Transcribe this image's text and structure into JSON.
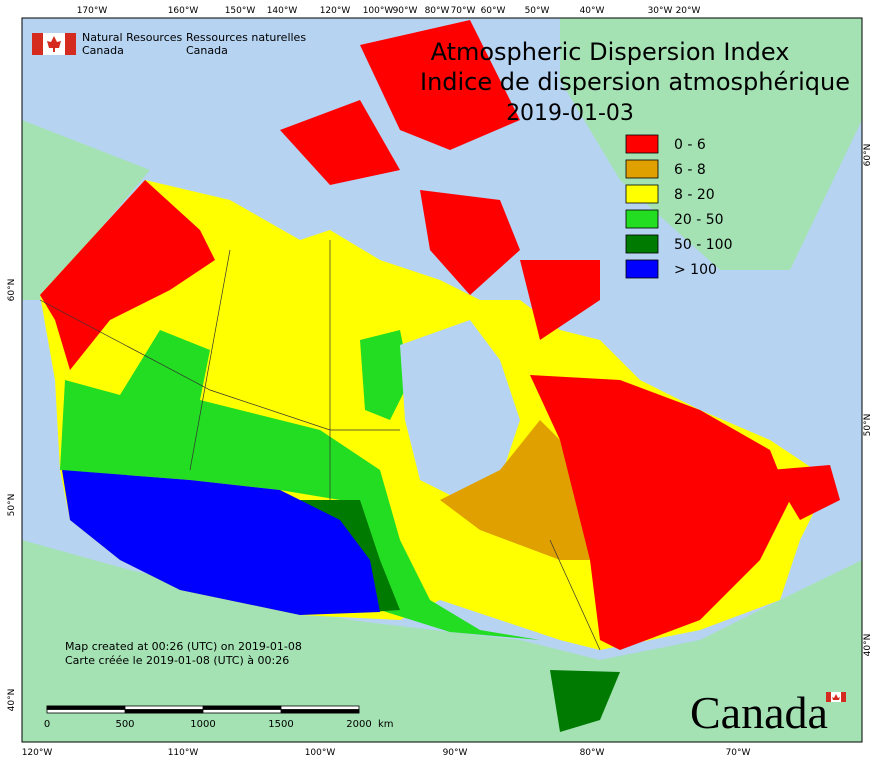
{
  "header": {
    "agency_en": "Natural Resources",
    "agency_en_country": "Canada",
    "agency_fr": "Ressources naturelles",
    "agency_fr_country": "Canada"
  },
  "title": {
    "line1": "Atmospheric Dispersion Index",
    "line2": "Indice de dispersion atmosphérique",
    "date": "2019-01-03"
  },
  "legend": [
    {
      "label": "0 - 6",
      "color": "#ff0000"
    },
    {
      "label": "6 - 8",
      "color": "#e0a000"
    },
    {
      "label": "8 - 20",
      "color": "#ffff00"
    },
    {
      "label": "20 - 50",
      "color": "#22dd22"
    },
    {
      "label": "50 - 100",
      "color": "#007a00"
    },
    {
      "label": "> 100",
      "color": "#0000ff"
    }
  ],
  "credits": [
    "Map created at 00:26 (UTC) on 2019-01-08",
    "Carte créée le 2019-01-08 (UTC) à 00:26"
  ],
  "scale": {
    "labels": [
      "0",
      "500",
      "1000",
      "1500",
      "2000"
    ],
    "unit": "km"
  },
  "graticule": {
    "top": [
      "170°W",
      "160°W",
      "150°W",
      "140°W",
      "120°W",
      "100°W",
      "90°W",
      "80°W",
      "70°W",
      "60°W",
      "50°W",
      "40°W",
      "30°W",
      "20°W"
    ],
    "bottom": [
      "120°W",
      "110°W",
      "100°W",
      "90°W",
      "80°W",
      "70°W"
    ],
    "left": [
      "60°N",
      "50°N",
      "40°N"
    ],
    "right": [
      "60°N",
      "50°N",
      "40°N"
    ]
  },
  "wordmark": "Canada"
}
